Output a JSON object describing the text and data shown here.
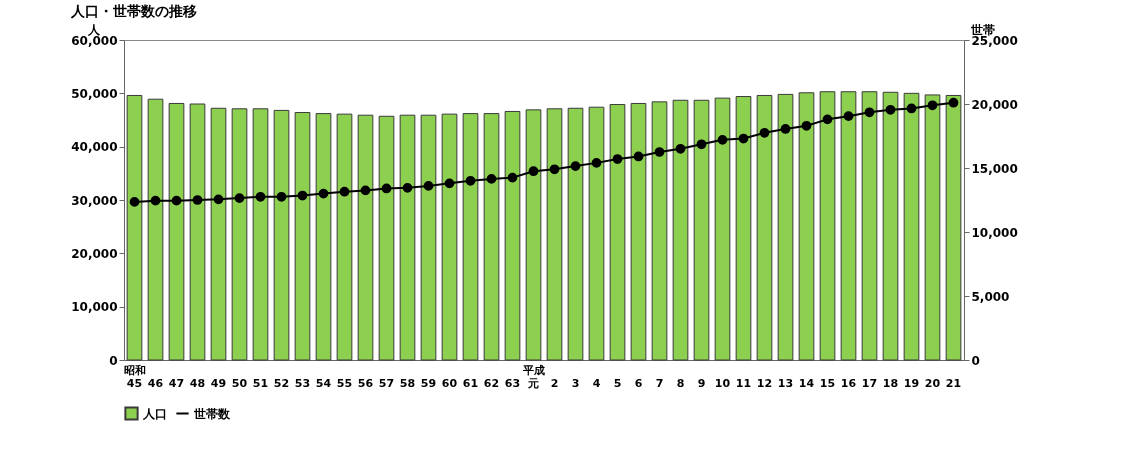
{
  "chart_data": {
    "type": "bar",
    "title": "人口・世帯数の推移",
    "categories": [
      "昭和45",
      "46",
      "47",
      "48",
      "49",
      "50",
      "51",
      "52",
      "53",
      "54",
      "55",
      "56",
      "57",
      "58",
      "59",
      "60",
      "61",
      "62",
      "63",
      "平成元",
      "2",
      "3",
      "4",
      "5",
      "6",
      "7",
      "8",
      "9",
      "10",
      "11",
      "12",
      "13",
      "14",
      "15",
      "16",
      "17",
      "18",
      "19",
      "20",
      "21"
    ],
    "series": [
      {
        "name": "人口",
        "color": "#8dcf4f",
        "values": [
          49600,
          48900,
          48100,
          48000,
          47200,
          47100,
          47100,
          46800,
          46400,
          46200,
          46100,
          45900,
          45700,
          45900,
          45900,
          46100,
          46200,
          46200,
          46600,
          46900,
          47100,
          47200,
          47400,
          47900,
          48100,
          48400,
          48700,
          48700,
          49100,
          49400,
          49600,
          49800,
          50100,
          50300,
          50300,
          50300,
          50200,
          50000,
          49700,
          49600
        ]
      },
      {
        "name": "世帯数",
        "type": "line",
        "axis": "y2",
        "color": "#000000",
        "values": [
          12350,
          12450,
          12450,
          12500,
          12550,
          12650,
          12750,
          12750,
          12850,
          13000,
          13150,
          13250,
          13400,
          13450,
          13600,
          13800,
          14000,
          14150,
          14250,
          14750,
          14900,
          15150,
          15400,
          15700,
          15900,
          16250,
          16500,
          16850,
          17200,
          17300,
          17750,
          18050,
          18300,
          18800,
          19050,
          19350,
          19550,
          19650,
          19900,
          20100
        ]
      }
    ],
    "ylabel": "人",
    "y2label": "世帯",
    "ylim": [
      0,
      60000
    ],
    "yticks": [
      0,
      {
        "value": 10000,
        "label": "10,000"
      },
      {
        "value": 20000,
        "label": "20,000"
      },
      {
        "value": 30000,
        "label": "30,000"
      },
      {
        "value": 40000,
        "label": "40,000"
      },
      {
        "value": 50000,
        "label": "50,000"
      },
      {
        "value": 60000,
        "label": "60,000"
      }
    ],
    "y2lim": [
      0,
      25000
    ],
    "y2ticks": [
      0,
      {
        "value": 5000,
        "label": "5,000"
      },
      {
        "value": 10000,
        "label": "10,000"
      },
      {
        "value": 15000,
        "label": "15,000"
      },
      {
        "value": 20000,
        "label": "20,000"
      },
      {
        "value": 25000,
        "label": "25,000"
      }
    ],
    "legend": "bottom",
    "marker": "circle",
    "grid": false
  }
}
